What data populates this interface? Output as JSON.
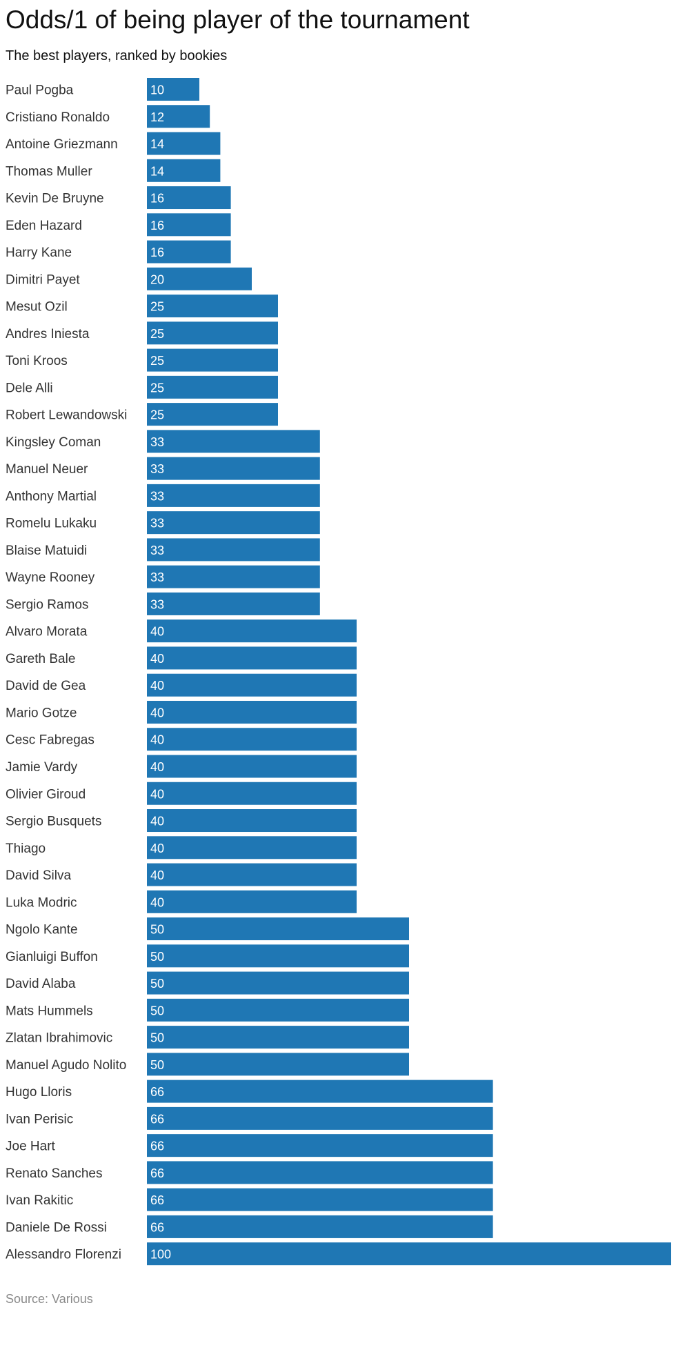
{
  "chart_data": {
    "type": "bar",
    "orientation": "horizontal",
    "title": "Odds/1 of being player of the tournament",
    "subtitle": "The best players, ranked by bookies",
    "source": "Source: Various",
    "bar_color": "#1f77b4",
    "xlim": [
      0,
      100
    ],
    "grid": false,
    "legend": "none",
    "categories": [
      "Paul Pogba",
      "Cristiano Ronaldo",
      "Antoine Griezmann",
      "Thomas Muller",
      "Kevin De Bruyne",
      "Eden Hazard",
      "Harry Kane",
      "Dimitri Payet",
      "Mesut Ozil",
      "Andres Iniesta",
      "Toni Kroos",
      "Dele Alli",
      "Robert Lewandowski",
      "Kingsley Coman",
      "Manuel Neuer",
      "Anthony Martial",
      "Romelu Lukaku",
      "Blaise Matuidi",
      "Wayne Rooney",
      "Sergio Ramos",
      "Alvaro Morata",
      "Gareth Bale",
      "David de Gea",
      "Mario Gotze",
      "Cesc Fabregas",
      "Jamie Vardy",
      "Olivier Giroud",
      "Sergio Busquets",
      "Thiago",
      "David Silva",
      "Luka Modric",
      "Ngolo Kante",
      "Gianluigi Buffon",
      "David Alaba",
      "Mats Hummels",
      "Zlatan Ibrahimovic",
      "Manuel Agudo Nolito",
      "Hugo Lloris",
      "Ivan Perisic",
      "Joe Hart",
      "Renato Sanches",
      "Ivan Rakitic",
      "Daniele De Rossi",
      "Alessandro Florenzi"
    ],
    "values": [
      10,
      12,
      14,
      14,
      16,
      16,
      16,
      20,
      25,
      25,
      25,
      25,
      25,
      33,
      33,
      33,
      33,
      33,
      33,
      33,
      40,
      40,
      40,
      40,
      40,
      40,
      40,
      40,
      40,
      40,
      40,
      50,
      50,
      50,
      50,
      50,
      50,
      66,
      66,
      66,
      66,
      66,
      66,
      100
    ]
  }
}
